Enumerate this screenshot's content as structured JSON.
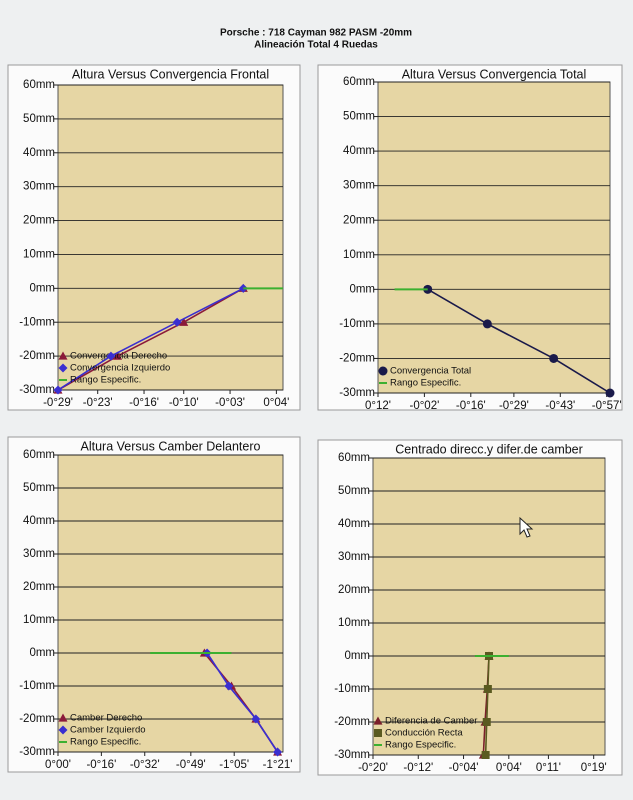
{
  "title": "Porsche : 718 Cayman 982 PASM -20mm",
  "subtitle": "Alineación Total 4 Ruedas",
  "chart_data": [
    {
      "type": "line",
      "title": "Altura Versus Convergencia Frontal",
      "xlim": [
        -29,
        5
      ],
      "xticks": [
        {
          "value": -29,
          "label": "-0°29'"
        },
        {
          "value": -23,
          "label": "-0°23'"
        },
        {
          "value": -16,
          "label": "-0°16'"
        },
        {
          "value": -10,
          "label": "-0°10'"
        },
        {
          "value": -3,
          "label": "-0°03'"
        },
        {
          "value": 4,
          "label": "0°04'"
        }
      ],
      "ylim": [
        -30,
        60
      ],
      "yticks": [
        {
          "value": 60,
          "label": "60mm"
        },
        {
          "value": 50,
          "label": "50mm"
        },
        {
          "value": 40,
          "label": "40mm"
        },
        {
          "value": 30,
          "label": "30mm"
        },
        {
          "value": 20,
          "label": "20mm"
        },
        {
          "value": 10,
          "label": "10mm"
        },
        {
          "value": 0,
          "label": "0mm"
        },
        {
          "value": -10,
          "label": "-10mm"
        },
        {
          "value": -20,
          "label": "-20mm"
        },
        {
          "value": -30,
          "label": "-30mm"
        }
      ],
      "grid": true,
      "legend": "lower left",
      "series": [
        {
          "name": "Convergencia Derecho",
          "color": "#8b1a3a",
          "marker": "triangle",
          "x": [
            -29,
            -20,
            -10,
            -1
          ],
          "values": [
            -30,
            -20,
            -10,
            0
          ]
        },
        {
          "name": "Convergencia Izquierdo",
          "color": "#3a2fd0",
          "marker": "diamond",
          "x": [
            -29,
            -21,
            -11,
            -1
          ],
          "values": [
            -30,
            -20,
            -10,
            0
          ]
        },
        {
          "name": "Rango Especific.",
          "color": "#3cb030",
          "marker": "line",
          "x": [
            -1,
            5
          ],
          "values": [
            0,
            0
          ]
        }
      ]
    },
    {
      "type": "line",
      "title": "Altura Versus Convergencia Total",
      "xlim": [
        12,
        -58
      ],
      "xticks": [
        {
          "value": 12,
          "label": "0°12'"
        },
        {
          "value": -2,
          "label": "-0°02'"
        },
        {
          "value": -16,
          "label": "-0°16'"
        },
        {
          "value": -29,
          "label": "-0°29'"
        },
        {
          "value": -43,
          "label": "-0°43'"
        },
        {
          "value": -57,
          "label": "-0°57'"
        }
      ],
      "ylim": [
        -30,
        60
      ],
      "yticks": [
        {
          "value": 60,
          "label": "60mm"
        },
        {
          "value": 50,
          "label": "50mm"
        },
        {
          "value": 40,
          "label": "40mm"
        },
        {
          "value": 30,
          "label": "30mm"
        },
        {
          "value": 20,
          "label": "20mm"
        },
        {
          "value": 10,
          "label": "10mm"
        },
        {
          "value": 0,
          "label": "0mm"
        },
        {
          "value": -10,
          "label": "-10mm"
        },
        {
          "value": -20,
          "label": "-20mm"
        },
        {
          "value": -30,
          "label": "-30mm"
        }
      ],
      "grid": true,
      "legend": "lower left",
      "series": [
        {
          "name": "Convergencia Total",
          "color": "#1a1a4a",
          "marker": "circle",
          "x": [
            -3,
            -21,
            -41,
            -58
          ],
          "values": [
            0,
            -10,
            -20,
            -30
          ]
        },
        {
          "name": "Rango Especific.",
          "color": "#3cb030",
          "marker": "line",
          "x": [
            7,
            -3
          ],
          "values": [
            0,
            0
          ]
        }
      ]
    },
    {
      "type": "line",
      "title": "Altura Versus Camber Delantero",
      "xlim": [
        0,
        -83
      ],
      "xticks": [
        {
          "value": 0,
          "label": "0°00'"
        },
        {
          "value": -16,
          "label": "-0°16'"
        },
        {
          "value": -32,
          "label": "-0°32'"
        },
        {
          "value": -49,
          "label": "-0°49'"
        },
        {
          "value": -65,
          "label": "-1°05'"
        },
        {
          "value": -81,
          "label": "-1°21'"
        }
      ],
      "ylim": [
        -30,
        60
      ],
      "yticks": [
        {
          "value": 60,
          "label": "60mm"
        },
        {
          "value": 50,
          "label": "50mm"
        },
        {
          "value": 40,
          "label": "40mm"
        },
        {
          "value": 30,
          "label": "30mm"
        },
        {
          "value": 20,
          "label": "20mm"
        },
        {
          "value": 10,
          "label": "10mm"
        },
        {
          "value": 0,
          "label": "0mm"
        },
        {
          "value": -10,
          "label": "-10mm"
        },
        {
          "value": -20,
          "label": "-20mm"
        },
        {
          "value": -30,
          "label": "-30mm"
        }
      ],
      "grid": true,
      "legend": "lower left",
      "series": [
        {
          "name": "Camber Derecho",
          "color": "#8b1a3a",
          "marker": "triangle",
          "x": [
            -54,
            -64,
            -73,
            -81
          ],
          "values": [
            0,
            -10,
            -20,
            -30
          ]
        },
        {
          "name": "Camber Izquierdo",
          "color": "#3a2fd0",
          "marker": "diamond",
          "x": [
            -55,
            -63,
            -73,
            -81
          ],
          "values": [
            0,
            -10,
            -20,
            -30
          ]
        },
        {
          "name": "Rango Especific.",
          "color": "#3cb030",
          "marker": "line",
          "x": [
            -34,
            -64
          ],
          "values": [
            0,
            0
          ]
        }
      ]
    },
    {
      "type": "line",
      "title": "Centrado direcc.y difer.de camber",
      "xlim": [
        -20,
        21
      ],
      "xticks": [
        {
          "value": -20,
          "label": "-0°20'"
        },
        {
          "value": -12,
          "label": "-0°12'"
        },
        {
          "value": -4,
          "label": "-0°04'"
        },
        {
          "value": 4,
          "label": "0°04'"
        },
        {
          "value": 11,
          "label": "0°11'"
        },
        {
          "value": 19,
          "label": "0°19'"
        }
      ],
      "ylim": [
        -30,
        60
      ],
      "yticks": [
        {
          "value": 60,
          "label": "60mm"
        },
        {
          "value": 50,
          "label": "50mm"
        },
        {
          "value": 40,
          "label": "40mm"
        },
        {
          "value": 30,
          "label": "30mm"
        },
        {
          "value": 20,
          "label": "20mm"
        },
        {
          "value": 10,
          "label": "10mm"
        },
        {
          "value": 0,
          "label": "0mm"
        },
        {
          "value": -10,
          "label": "-10mm"
        },
        {
          "value": -20,
          "label": "-20mm"
        },
        {
          "value": -30,
          "label": "-30mm"
        }
      ],
      "grid": true,
      "legend": "lower left",
      "series": [
        {
          "name": "Diferencia de Camber",
          "color": "#7a1f2a",
          "marker": "triangle",
          "x": [
            0.5,
            0.2,
            -0.2,
            -0.5
          ],
          "values": [
            0,
            -10,
            -20,
            -30
          ]
        },
        {
          "name": "Conducción Recta",
          "color": "#5a5a20",
          "marker": "square",
          "x": [
            0.5,
            0.3,
            0.1,
            -0.1
          ],
          "values": [
            0,
            -10,
            -20,
            -30
          ]
        },
        {
          "name": "Rango Especific.",
          "color": "#3cb030",
          "marker": "line",
          "x": [
            -2,
            4
          ],
          "values": [
            0,
            0
          ]
        }
      ]
    }
  ]
}
